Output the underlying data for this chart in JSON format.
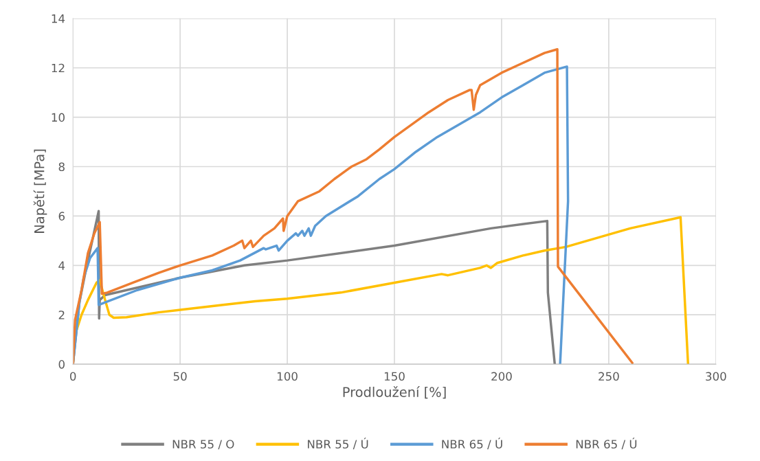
{
  "chart_data": {
    "type": "line",
    "xlabel": "Prodloužení [%]",
    "ylabel": "Napětí [MPa]",
    "xlim": [
      0,
      300
    ],
    "xticks": [
      0,
      50,
      100,
      150,
      200,
      250,
      300
    ],
    "ylim": [
      0,
      14
    ],
    "yticks": [
      0,
      2,
      4,
      6,
      8,
      10,
      12,
      14
    ],
    "grid": true,
    "legend": "bottom",
    "marker": "none",
    "line_style": "solid",
    "series": [
      {
        "name": "NBR 55 / O",
        "color": "#7f7f7f",
        "x": [
          0,
          3,
          6,
          9,
          12,
          12.2,
          12.5,
          15,
          40,
          50,
          80,
          100,
          150,
          195,
          221.3,
          221.6,
          224.8
        ],
        "values": [
          0,
          2.5,
          3.8,
          5.0,
          6.2,
          1.85,
          2.6,
          2.8,
          3.3,
          3.5,
          4.0,
          4.2,
          4.8,
          5.5,
          5.8,
          2.9,
          0
        ]
      },
      {
        "name": "NBR 55 / Ú",
        "color": "#ffc000",
        "x": [
          0,
          1,
          4,
          7,
          11,
          12.5,
          15,
          17,
          19,
          25,
          40,
          50,
          70,
          85,
          100,
          125,
          150,
          172,
          175,
          190,
          193,
          195,
          198,
          210,
          220,
          230,
          260,
          283.5,
          287
        ],
        "values": [
          0,
          1.2,
          2.0,
          2.6,
          3.3,
          3.4,
          2.6,
          2.0,
          1.88,
          1.9,
          2.1,
          2.2,
          2.4,
          2.55,
          2.65,
          2.9,
          3.3,
          3.65,
          3.6,
          3.9,
          4.0,
          3.9,
          4.1,
          4.4,
          4.6,
          4.75,
          5.5,
          5.95,
          0
        ]
      },
      {
        "name": "NBR 65 / Ú",
        "color": "#5b9bd5",
        "x": [
          0,
          3,
          5,
          8,
          11.5,
          12,
          15,
          30,
          50,
          65,
          78,
          89,
          90,
          95,
          96,
          100,
          104,
          105,
          107,
          108,
          110,
          111,
          113,
          118,
          133,
          143,
          150,
          160,
          170,
          180,
          190,
          200,
          210,
          220,
          230.5,
          231,
          227.3
        ],
        "values": [
          0,
          2.5,
          3.5,
          4.3,
          4.7,
          2.4,
          2.5,
          3.0,
          3.5,
          3.8,
          4.2,
          4.7,
          4.65,
          4.8,
          4.6,
          5.0,
          5.3,
          5.2,
          5.4,
          5.2,
          5.5,
          5.2,
          5.6,
          6.0,
          6.8,
          7.5,
          7.9,
          8.6,
          9.2,
          9.7,
          10.2,
          10.8,
          11.3,
          11.8,
          12.05,
          6.6,
          0
        ]
      },
      {
        "name": "NBR 65 / Ú",
        "color": "#ed7d31",
        "x": [
          0,
          1,
          4,
          7,
          10,
          12.5,
          13.5,
          16,
          28,
          40,
          50,
          65,
          75,
          79,
          80,
          83,
          84,
          89,
          94,
          98,
          98.3,
          100,
          105,
          115,
          122,
          130,
          137,
          143,
          150,
          158,
          166,
          175,
          185,
          186,
          187,
          188,
          190,
          200,
          210,
          220,
          226,
          226.3,
          261
        ],
        "values": [
          0,
          1.8,
          3.0,
          4.5,
          5.3,
          5.75,
          2.85,
          2.9,
          3.3,
          3.7,
          4.0,
          4.4,
          4.8,
          5.0,
          4.7,
          5.0,
          4.75,
          5.2,
          5.5,
          5.9,
          5.4,
          6.0,
          6.6,
          7.0,
          7.5,
          8.0,
          8.3,
          8.7,
          9.2,
          9.7,
          10.2,
          10.7,
          11.1,
          11.1,
          10.3,
          10.9,
          11.3,
          11.8,
          12.2,
          12.6,
          12.75,
          3.95,
          0.05
        ]
      }
    ]
  }
}
